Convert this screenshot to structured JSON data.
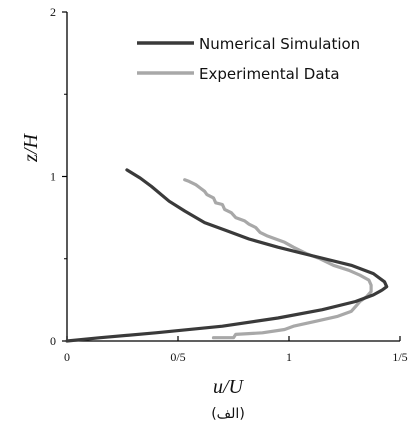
{
  "chart_data": {
    "type": "line",
    "xlabel": "u/U",
    "ylabel": "z/H",
    "caption": "(الف)",
    "xlim": [
      0,
      1.5
    ],
    "ylim": [
      0,
      2
    ],
    "x_ticks": [
      {
        "value": 0,
        "label": "0"
      },
      {
        "value": 0.5,
        "label": "0/5"
      },
      {
        "value": 1,
        "label": "1"
      },
      {
        "value": 1.5,
        "label": "1/5"
      }
    ],
    "y_ticks": [
      {
        "value": 0,
        "label": "0"
      },
      {
        "value": 1,
        "label": "1"
      },
      {
        "value": 2,
        "label": "2"
      }
    ],
    "grid": false,
    "legend_position": "top-right",
    "series": [
      {
        "name": "Numerical Simulation",
        "color": "#3a3a3a",
        "points": [
          [
            0.0,
            0.0
          ],
          [
            0.15,
            0.02
          ],
          [
            0.4,
            0.05
          ],
          [
            0.7,
            0.09
          ],
          [
            0.95,
            0.14
          ],
          [
            1.15,
            0.19
          ],
          [
            1.3,
            0.24
          ],
          [
            1.38,
            0.28
          ],
          [
            1.42,
            0.31
          ],
          [
            1.44,
            0.33
          ],
          [
            1.43,
            0.36
          ],
          [
            1.38,
            0.41
          ],
          [
            1.28,
            0.46
          ],
          [
            1.1,
            0.52
          ],
          [
            0.95,
            0.57
          ],
          [
            0.82,
            0.62
          ],
          [
            0.72,
            0.67
          ],
          [
            0.62,
            0.72
          ],
          [
            0.53,
            0.79
          ],
          [
            0.46,
            0.85
          ],
          [
            0.38,
            0.94
          ],
          [
            0.33,
            0.99
          ],
          [
            0.27,
            1.04
          ]
        ]
      },
      {
        "name": "Experimental Data",
        "color": "#a8a8a8",
        "points": [
          [
            0.66,
            0.02
          ],
          [
            0.75,
            0.02
          ],
          [
            0.76,
            0.04
          ],
          [
            0.88,
            0.05
          ],
          [
            0.98,
            0.07
          ],
          [
            1.02,
            0.09
          ],
          [
            1.12,
            0.12
          ],
          [
            1.22,
            0.15
          ],
          [
            1.28,
            0.18
          ],
          [
            1.3,
            0.21
          ],
          [
            1.32,
            0.24
          ],
          [
            1.35,
            0.27
          ],
          [
            1.37,
            0.3
          ],
          [
            1.37,
            0.34
          ],
          [
            1.36,
            0.37
          ],
          [
            1.32,
            0.4
          ],
          [
            1.27,
            0.43
          ],
          [
            1.2,
            0.46
          ],
          [
            1.14,
            0.5
          ],
          [
            1.08,
            0.53
          ],
          [
            1.02,
            0.57
          ],
          [
            0.98,
            0.6
          ],
          [
            0.94,
            0.62
          ],
          [
            0.9,
            0.64
          ],
          [
            0.87,
            0.66
          ],
          [
            0.85,
            0.69
          ],
          [
            0.82,
            0.71
          ],
          [
            0.8,
            0.73
          ],
          [
            0.76,
            0.75
          ],
          [
            0.74,
            0.78
          ],
          [
            0.71,
            0.8
          ],
          [
            0.7,
            0.83
          ],
          [
            0.67,
            0.84
          ],
          [
            0.66,
            0.87
          ],
          [
            0.63,
            0.89
          ],
          [
            0.62,
            0.91
          ],
          [
            0.6,
            0.93
          ],
          [
            0.58,
            0.95
          ],
          [
            0.55,
            0.97
          ],
          [
            0.53,
            0.98
          ]
        ]
      }
    ]
  }
}
